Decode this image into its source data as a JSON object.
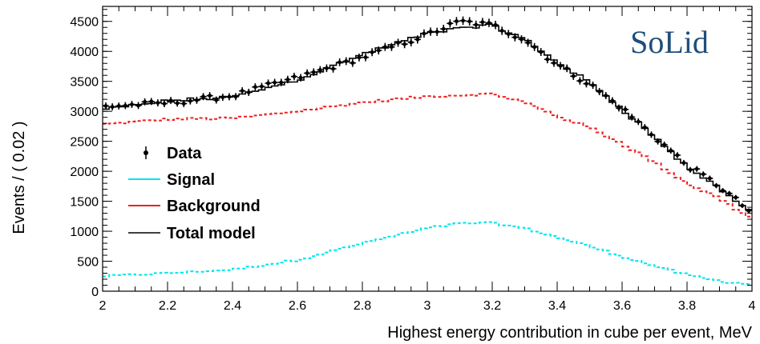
{
  "chart_data": {
    "type": "line",
    "title": "",
    "xlabel": "Highest energy contribution in cube per event, MeV",
    "ylabel": "Events / ( 0.02 )",
    "xlim": [
      2,
      4
    ],
    "ylim": [
      0,
      4750
    ],
    "x_ticks": [
      "2",
      "2.2",
      "2.4",
      "2.6",
      "2.8",
      "3",
      "3.2",
      "3.4",
      "3.6",
      "3.8",
      "4"
    ],
    "y_ticks": [
      "0",
      "500",
      "1000",
      "1500",
      "2000",
      "2500",
      "3000",
      "3500",
      "4000",
      "4500"
    ],
    "grid": false,
    "legend_position": "left",
    "bin_width": 0.02,
    "anchors": {
      "data": {
        "x": [
          2.0,
          2.2,
          2.4,
          2.6,
          2.8,
          3.0,
          3.1,
          3.2,
          3.3,
          3.4,
          3.5,
          3.6,
          3.7,
          3.8,
          3.9,
          4.0
        ],
        "y": [
          3080,
          3140,
          3260,
          3560,
          3900,
          4280,
          4500,
          4440,
          4200,
          3780,
          3450,
          3050,
          2580,
          2100,
          1750,
          1300
        ]
      },
      "signal": {
        "x": [
          2.0,
          2.2,
          2.4,
          2.6,
          2.8,
          3.0,
          3.1,
          3.2,
          3.3,
          3.4,
          3.5,
          3.6,
          3.7,
          3.8,
          3.9,
          4.0
        ],
        "y": [
          250,
          300,
          360,
          520,
          800,
          1050,
          1130,
          1140,
          1050,
          900,
          750,
          580,
          420,
          270,
          170,
          110
        ]
      },
      "background": {
        "x": [
          2.0,
          2.2,
          2.4,
          2.6,
          2.8,
          3.0,
          3.1,
          3.2,
          3.3,
          3.4,
          3.5,
          3.6,
          3.7,
          3.8,
          3.9,
          4.0
        ],
        "y": [
          2780,
          2870,
          2880,
          3000,
          3150,
          3250,
          3270,
          3290,
          3150,
          2920,
          2730,
          2460,
          2150,
          1800,
          1550,
          1200
        ]
      }
    },
    "series": [
      {
        "name": "Data",
        "style": "points-with-errors",
        "color": "#000000"
      },
      {
        "name": "Signal",
        "style": "dashed-step",
        "color": "#00e5ee"
      },
      {
        "name": "Background",
        "style": "dashed-step",
        "color": "#ee2020"
      },
      {
        "name": "Total model",
        "style": "solid-step",
        "color": "#000000"
      }
    ]
  },
  "watermark": "SoLid"
}
